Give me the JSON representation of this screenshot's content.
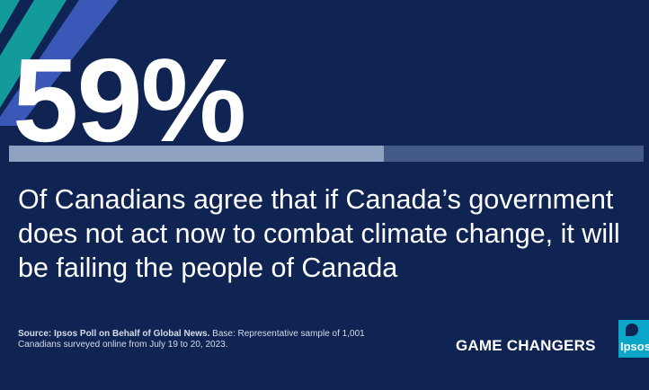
{
  "headline": {
    "value": "59%",
    "bar_fraction": 0.59
  },
  "statement": "Of Canadians agree that if Canada’s government does not act now to combat climate change, it will be failing the people of Canada",
  "source": {
    "label": "Source: Ipsos Poll on Behalf of Global News.",
    "text": "Base: Representative sample of 1,001 Canadians surveyed online from July 19 to 20, 2023."
  },
  "branding": {
    "tagline": "GAME CHANGERS",
    "logo_text": "Ipsos"
  },
  "colors": {
    "background": "#0f2452",
    "stripe_teal": "#139a9a",
    "stripe_blue": "#3a58b8",
    "bar_fill": "#8fa2c2",
    "bar_track": "#445a86",
    "logo": "#0aa6c9"
  }
}
